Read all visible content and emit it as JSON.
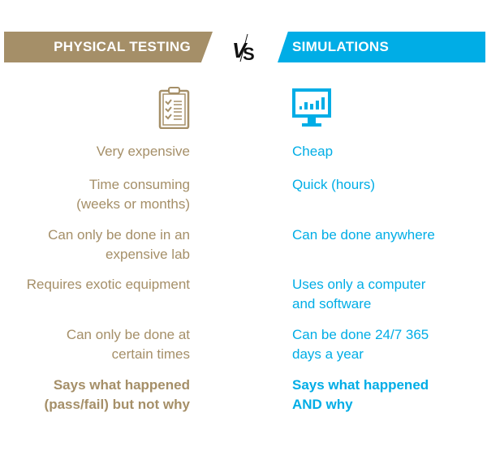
{
  "colors": {
    "physical": "#a58f68",
    "simulation": "#00ade6"
  },
  "header": {
    "left_title": "PHYSICAL TESTING",
    "vs": "VS",
    "right_title": "SIMULATIONS"
  },
  "icons": {
    "left": "clipboard-checklist-icon",
    "right": "monitor-bar-chart-icon"
  },
  "rows": [
    {
      "left": "Very expensive",
      "right": "Cheap"
    },
    {
      "left": "Time consuming\n(weeks or months)",
      "right": "Quick (hours)"
    },
    {
      "left": "Can only be done in an\nexpensive lab",
      "right": "Can be done anywhere"
    },
    {
      "left": "Requires exotic equipment",
      "right": "Uses only a computer\nand software"
    },
    {
      "left": "Can only be done at\ncertain times",
      "right": "Can be done 24/7 365\ndays a year"
    },
    {
      "left": "Says what happened\n(pass/fail) but not why",
      "right": "Says what happened\nAND why"
    }
  ]
}
